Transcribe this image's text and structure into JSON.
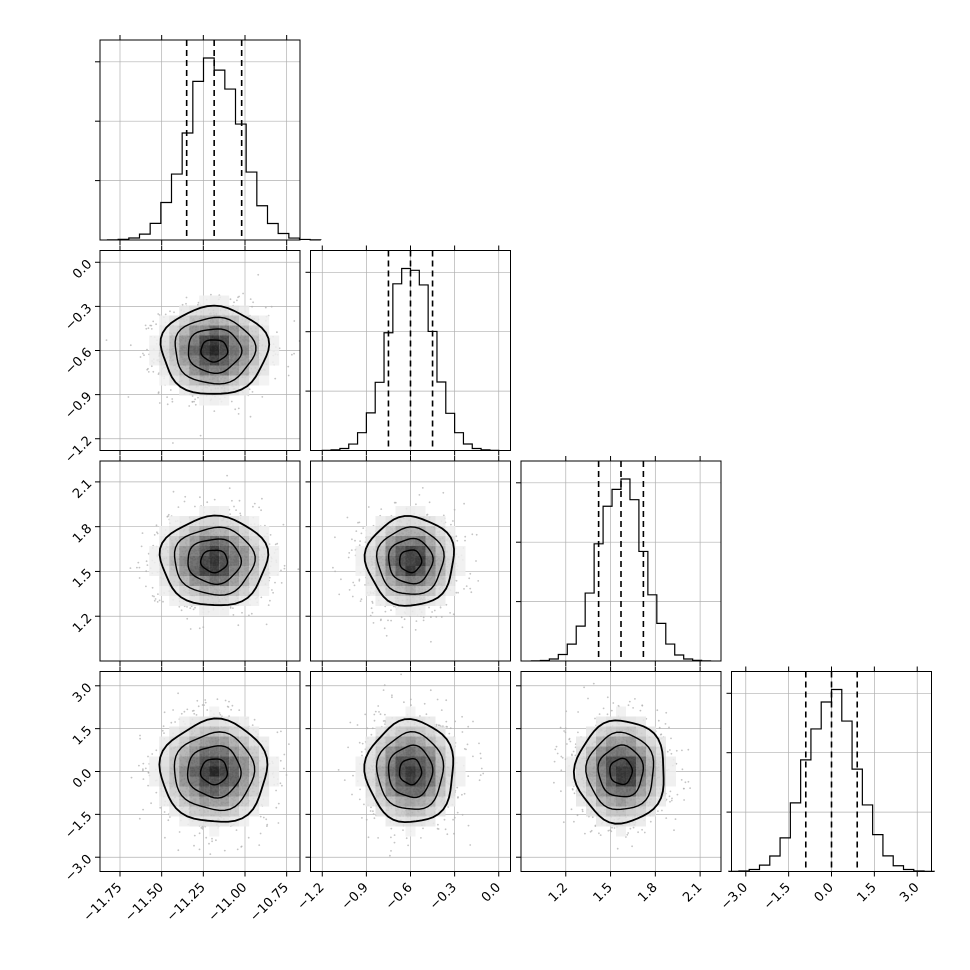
{
  "chart_data": {
    "type": "corner",
    "title": "",
    "grid": true,
    "parameters": [
      {
        "range": [
          -11.87,
          -10.67
        ],
        "ticks": [
          -11.75,
          -11.5,
          -11.25,
          -11.0,
          -10.75
        ],
        "tick_labels": [
          "−11.75",
          "−11.50",
          "−11.25",
          "−11.00",
          "−10.75"
        ],
        "center": -11.185,
        "sigma": 0.16,
        "quantiles": [
          -11.35,
          -11.185,
          -11.02
        ]
      },
      {
        "range": [
          -1.28,
          0.08
        ],
        "ticks": [
          -1.2,
          -0.9,
          -0.6,
          -0.3,
          0.0
        ],
        "tick_labels": [
          "−1.2",
          "−0.9",
          "−0.6",
          "−0.3",
          "0.0"
        ],
        "center": -0.6,
        "sigma": 0.15,
        "quantiles": [
          -0.75,
          -0.6,
          -0.45
        ]
      },
      {
        "range": [
          0.9,
          2.24
        ],
        "ticks": [
          1.2,
          1.5,
          1.8,
          2.1
        ],
        "tick_labels": [
          "1.2",
          "1.5",
          "1.8",
          "2.1"
        ],
        "center": 1.57,
        "sigma": 0.15,
        "quantiles": [
          1.42,
          1.57,
          1.72
        ]
      },
      {
        "range": [
          -3.5,
          3.5
        ],
        "ticks": [
          -3.0,
          -1.5,
          0.0,
          1.5,
          3.0
        ],
        "tick_labels": [
          "−3.0",
          "−1.5",
          "0.0",
          "1.5",
          "3.0"
        ],
        "center": 0.0,
        "sigma": 0.9,
        "quantiles": [
          -0.9,
          0.0,
          0.9
        ]
      }
    ],
    "histogram_bins": 20,
    "contour_levels_sigma": [
      0.5,
      1.0,
      1.5,
      2.0
    ],
    "colors": {
      "line": "#000000",
      "points": "#b0b0b0",
      "grid": "#b0b0b0"
    }
  }
}
